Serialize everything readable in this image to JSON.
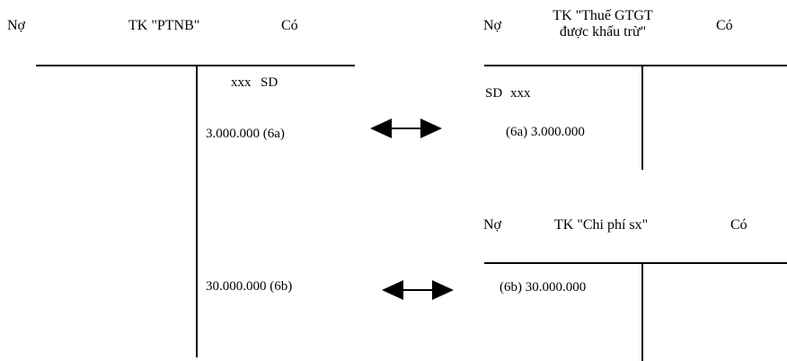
{
  "accounts": {
    "ptnb": {
      "debit_label": "Nợ",
      "title": "TK \"PTNB\"",
      "credit_label": "Có",
      "opening_amount": "xxx",
      "opening_label": "SD",
      "entry_6a": "3.000.000 (6a)",
      "entry_6b": "30.000.000 (6b)"
    },
    "vat": {
      "debit_label": "Nợ",
      "title_line1": "TK \"Thuế GTGT",
      "title_line2": "được khấu trừ\"",
      "credit_label": "Có",
      "opening_label": "SD",
      "opening_amount": "xxx",
      "entry_6a": "(6a)  3.000.000"
    },
    "production_cost": {
      "debit_label": "Nợ",
      "title": "TK \"Chi phí sx\"",
      "credit_label": "Có",
      "entry_6b": "(6b)  30.000.000"
    }
  },
  "connectors": [
    {
      "from": "6a",
      "icon": "double-arrow-icon"
    },
    {
      "from": "6b",
      "icon": "double-arrow-icon"
    }
  ]
}
